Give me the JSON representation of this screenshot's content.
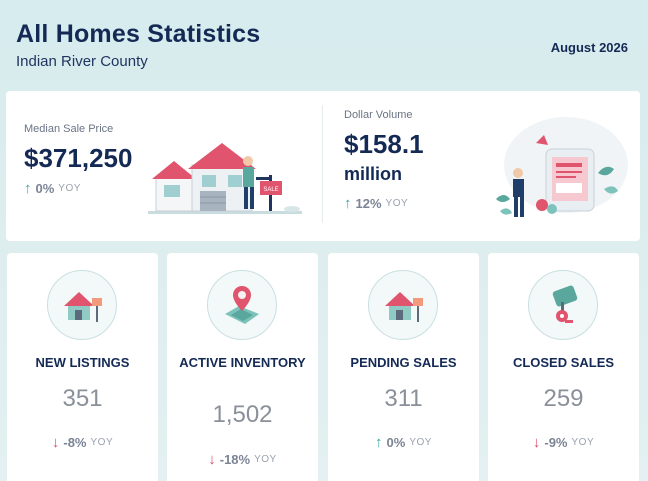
{
  "header": {
    "title": "All Homes Statistics",
    "subtitle": "Indian River County",
    "date": "August 2026"
  },
  "summary": {
    "median": {
      "label": "Median Sale Price",
      "value": "$371,250",
      "change": "0%",
      "yoy": "YOY",
      "direction": "up"
    },
    "volume": {
      "label": "Dollar Volume",
      "value": "$158.1",
      "unit": "million",
      "change": "12%",
      "yoy": "YOY",
      "direction": "up"
    }
  },
  "metrics": [
    {
      "label": "NEW LISTINGS",
      "value": "351",
      "change": "-8%",
      "yoy": "YOY",
      "direction": "down",
      "icon": "house-sign-icon"
    },
    {
      "label": "ACTIVE INVENTORY",
      "value": "1,502",
      "change": "-18%",
      "yoy": "YOY",
      "direction": "down",
      "icon": "map-pin-icon"
    },
    {
      "label": "PENDING SALES",
      "value": "311",
      "change": "0%",
      "yoy": "YOY",
      "direction": "up",
      "icon": "house-sign-icon"
    },
    {
      "label": "CLOSED SALES",
      "value": "259",
      "change": "-9%",
      "yoy": "YOY",
      "direction": "down",
      "icon": "key-icon"
    }
  ],
  "colors": {
    "navy": "#142a55",
    "up": "#3aa89f",
    "down": "#d9506b",
    "roof": "#e0546e",
    "teal": "#7dc3bb"
  }
}
